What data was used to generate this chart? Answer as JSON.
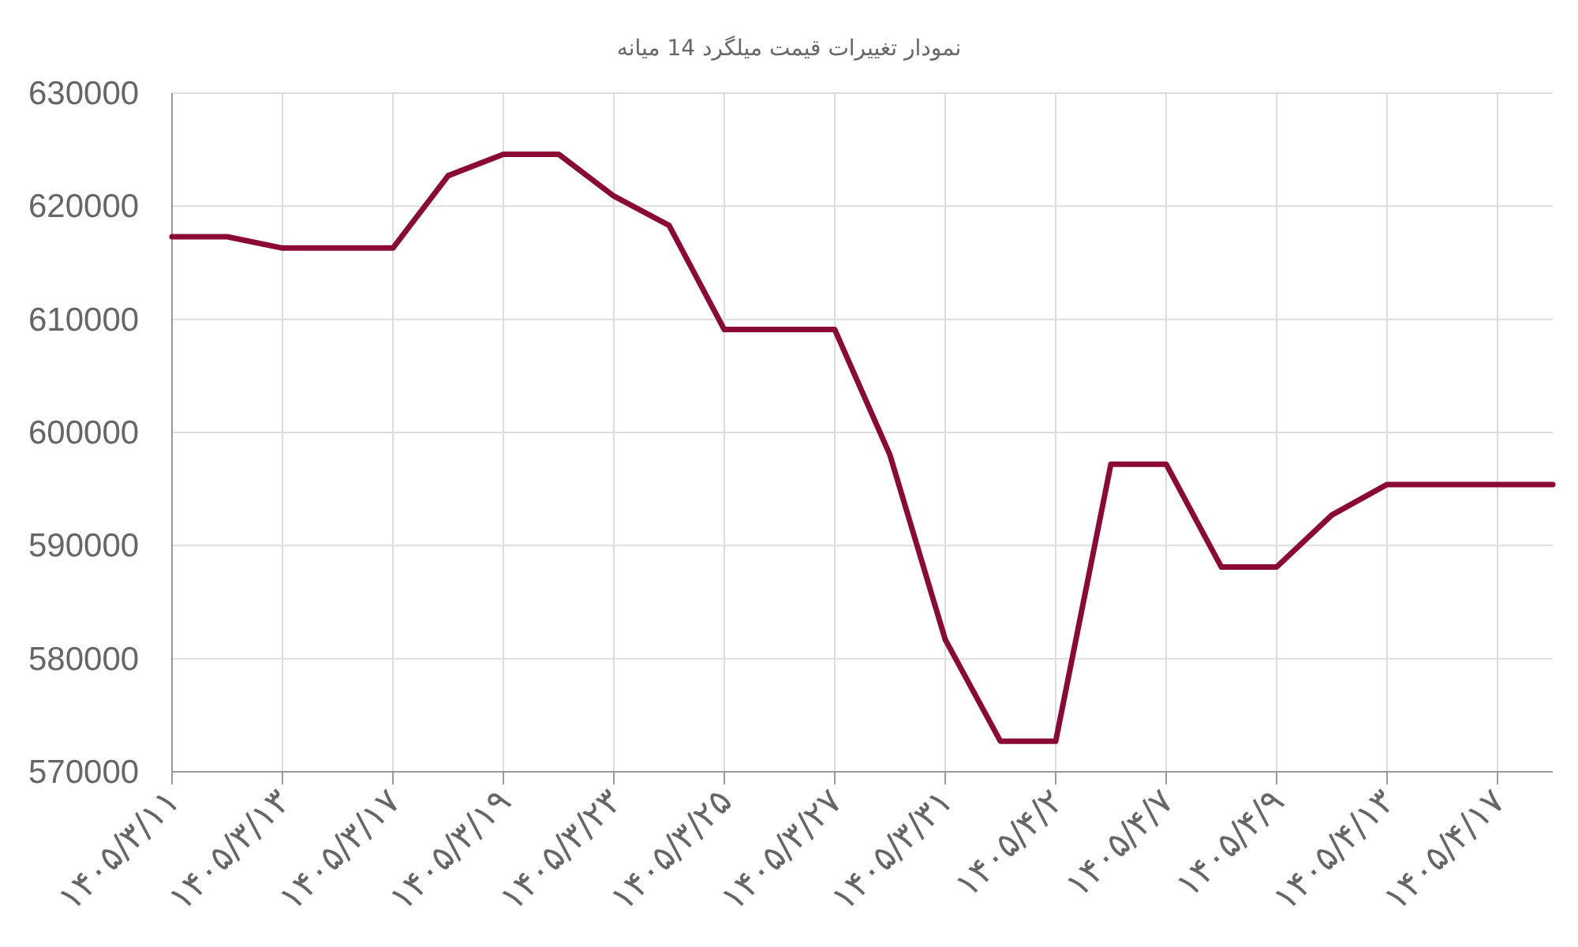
{
  "chart_data": {
    "type": "line",
    "title": "نمودار تغییرات قیمت میلگرد 14 میانه",
    "categories": [
      "۱۴۰۵/۳/۱۱",
      null,
      "۱۴۰۵/۳/۱۳",
      null,
      "۱۴۰۵/۳/۱۷",
      null,
      "۱۴۰۵/۳/۱۹",
      null,
      "۱۴۰۵/۳/۲۳",
      null,
      "۱۴۰۵/۳/۲۵",
      null,
      "۱۴۰۵/۳/۲۷",
      null,
      "۱۴۰۵/۳/۳۱",
      null,
      "۱۴۰۵/۴/۲",
      null,
      "۱۴۰۵/۴/۷",
      null,
      "۱۴۰۵/۴/۹",
      null,
      "۱۴۰۵/۴/۱۳",
      null,
      "۱۴۰۵/۴/۱۷",
      null
    ],
    "series": [
      {
        "color": "#8b0a33",
        "values": [
          617300,
          617300,
          616300,
          616300,
          616300,
          622700,
          624600,
          624600,
          620900,
          618300,
          609100,
          609100,
          609100,
          598000,
          581700,
          572700,
          572700,
          597200,
          597200,
          588100,
          588100,
          592700,
          595400,
          595400,
          595400,
          595400
        ]
      }
    ],
    "ylim": [
      570000,
      630000
    ],
    "yticks": [
      570000,
      580000,
      590000,
      600000,
      610000,
      620000,
      630000
    ],
    "grid": true,
    "marker": "none",
    "line_style": "solid"
  }
}
